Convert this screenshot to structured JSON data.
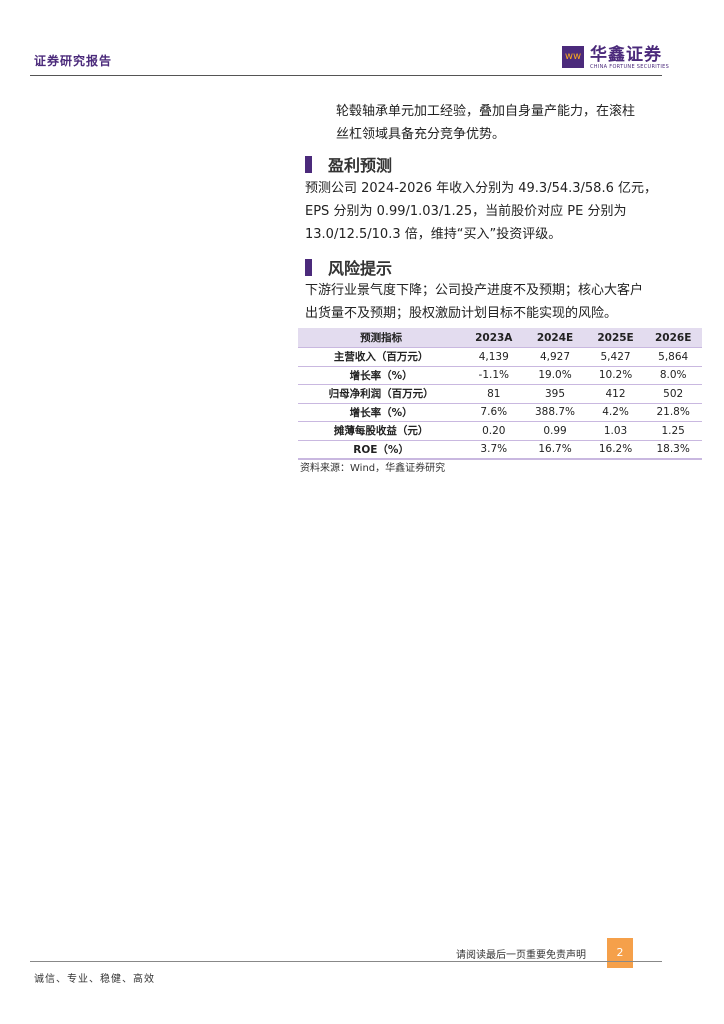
{
  "header": {
    "title": "证券研究报告",
    "logo_cn": "华鑫证券",
    "logo_en": "CHINA FORTUNE SECURITIES"
  },
  "intro_lines": [
    "轮毂轴承单元加工经验，叠加自身量产能力，在滚柱",
    "丝杠领域具备充分竞争优势。"
  ],
  "sections": [
    {
      "title": "盈利预测",
      "lines": [
        "预测公司 2024-2026 年收入分别为 49.3/54.3/58.6 亿元，",
        "EPS 分别为 0.99/1.03/1.25，当前股价对应 PE 分别为",
        "13.0/12.5/10.3 倍，维持“买入”投资评级。"
      ]
    },
    {
      "title": "风险提示",
      "lines": [
        "下游行业景气度下降；公司投产进度不及预期；核心大客户",
        "出货量不及预期；股权激励计划目标不能实现的风险。"
      ]
    }
  ],
  "table": {
    "headers": [
      "预测指标",
      "2023A",
      "2024E",
      "2025E",
      "2026E"
    ],
    "rows": [
      [
        "主营收入（百万元）",
        "4,139",
        "4,927",
        "5,427",
        "5,864"
      ],
      [
        "增长率（%）",
        "-1.1%",
        "19.0%",
        "10.2%",
        "8.0%"
      ],
      [
        "归母净利润（百万元）",
        "81",
        "395",
        "412",
        "502"
      ],
      [
        "增长率（%）",
        "7.6%",
        "388.7%",
        "4.2%",
        "21.8%"
      ],
      [
        "摊薄每股收益（元）",
        "0.20",
        "0.99",
        "1.03",
        "1.25"
      ],
      [
        "ROE（%）",
        "3.7%",
        "16.7%",
        "16.2%",
        "18.3%"
      ]
    ]
  },
  "source": "资料来源：Wind，华鑫证券研究",
  "footer": {
    "disclaimer": "请阅读最后一页重要免责声明",
    "page": "2",
    "motto": "诚信、专业、稳健、高效"
  },
  "colors": {
    "brand": "#4b2a7b",
    "accent": "#f5a04a",
    "table_header": "#e3dcef"
  }
}
